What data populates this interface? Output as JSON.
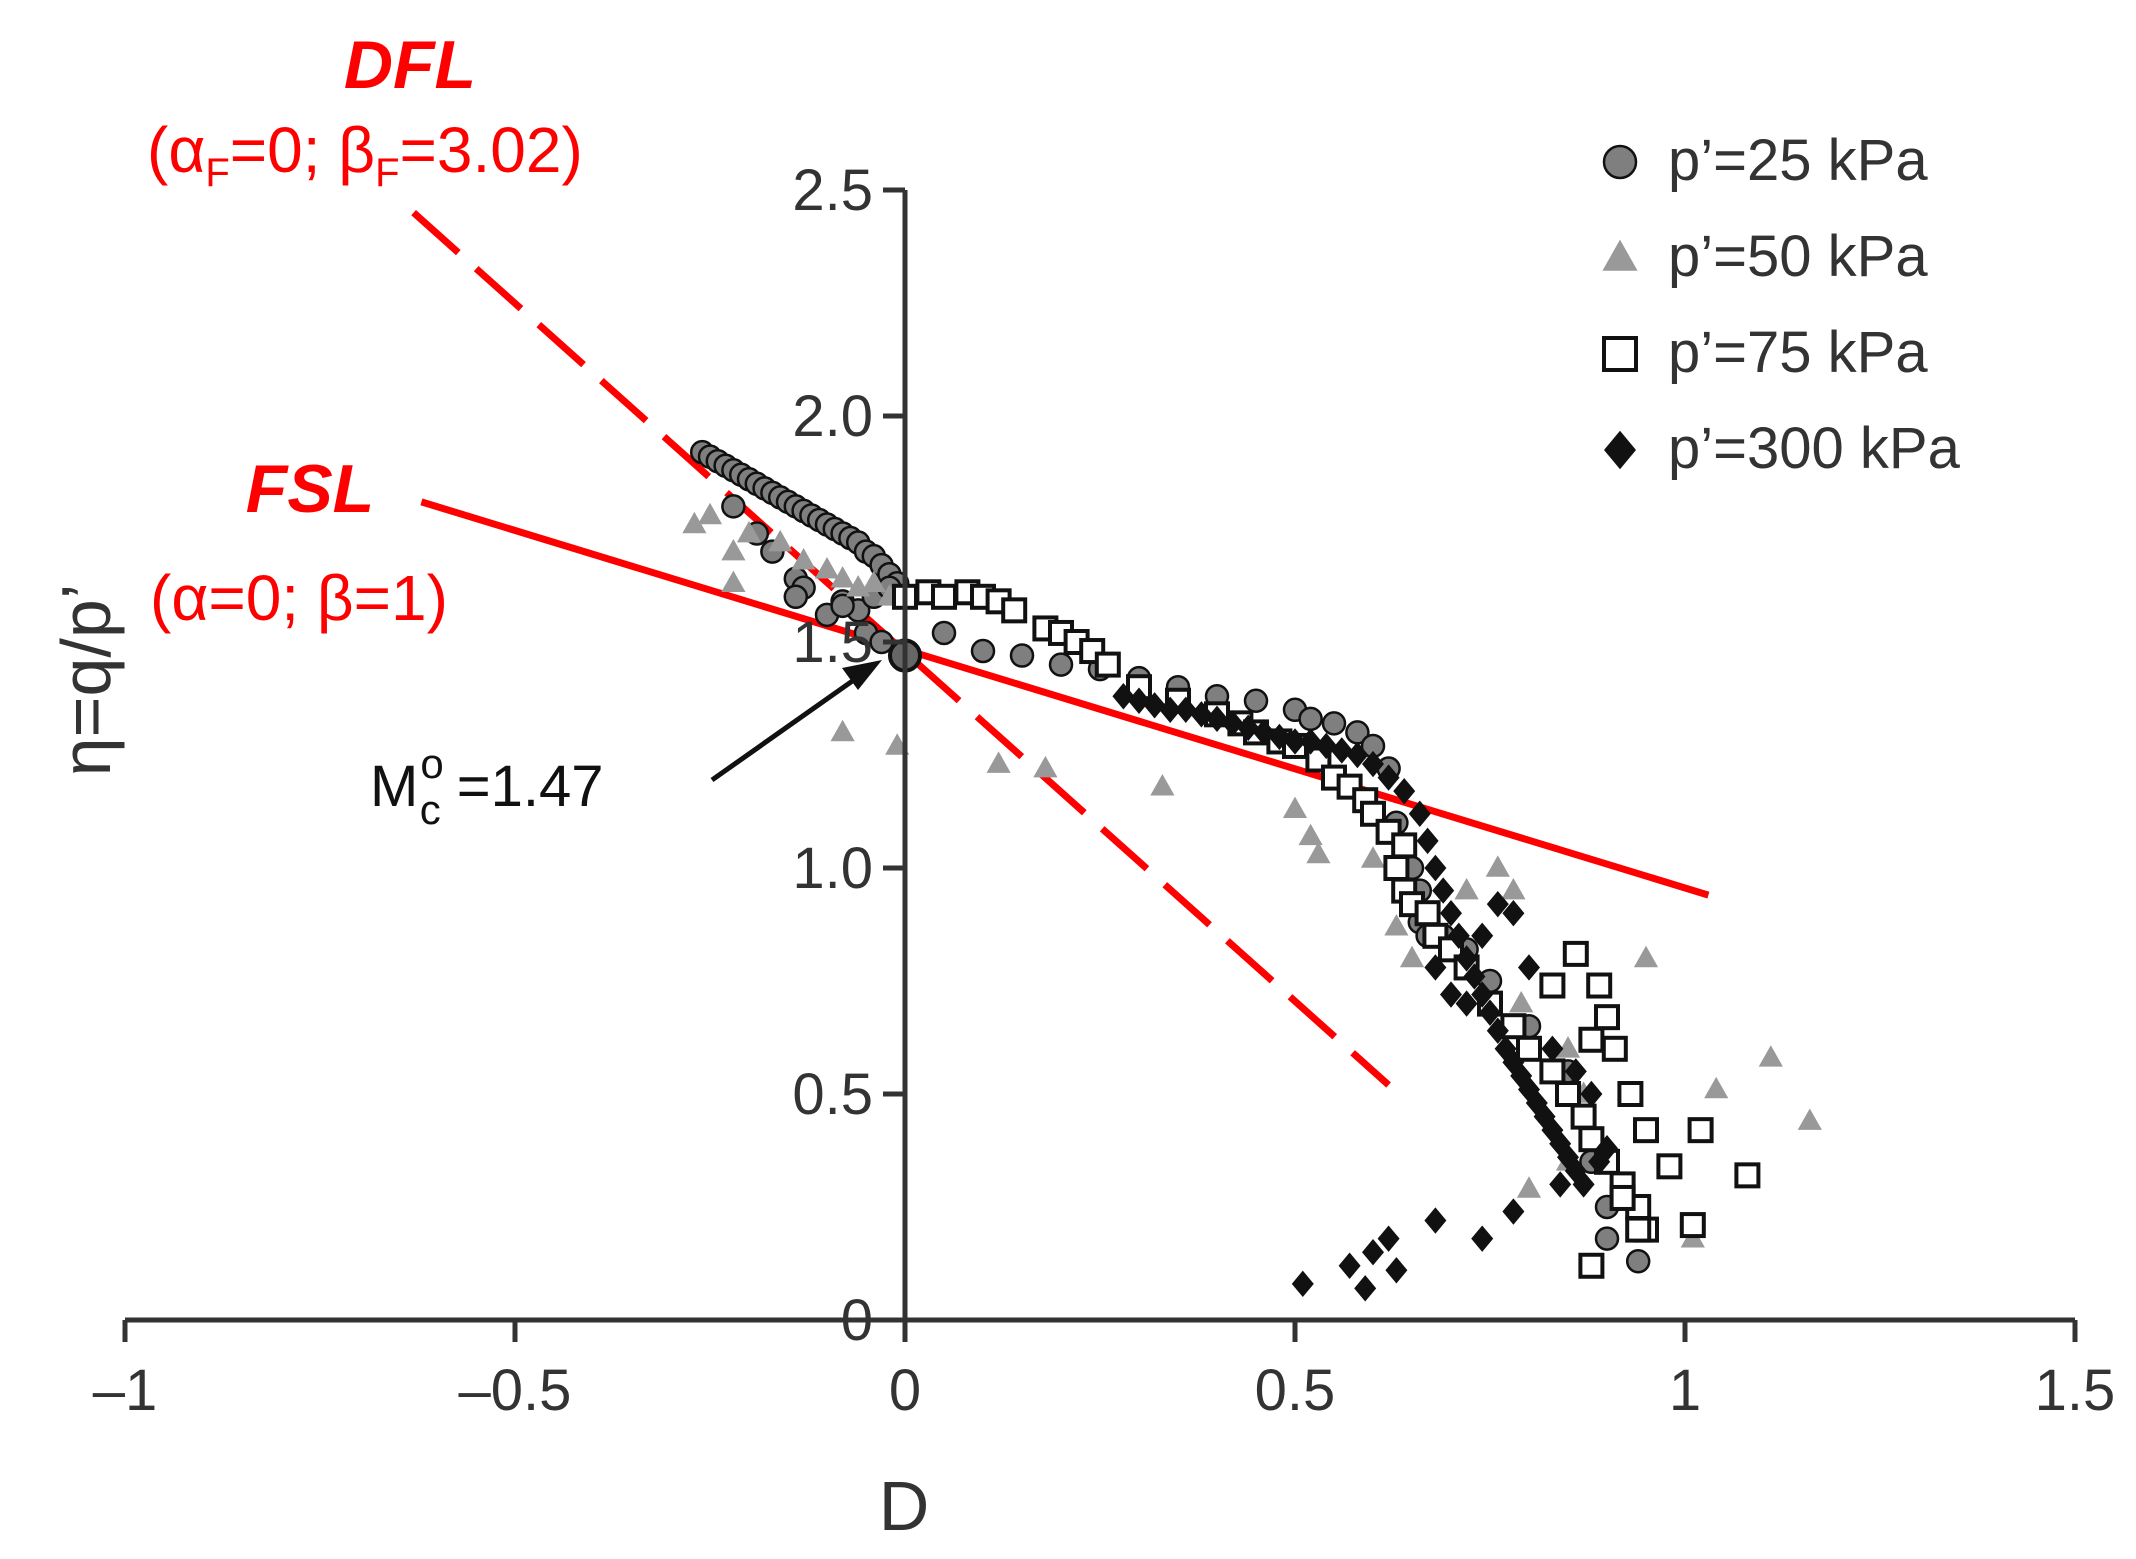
{
  "colors": {
    "axis": "#333333",
    "red": "#ff0000",
    "series_25": "#7f7f7f",
    "series_50": "#999999",
    "series_75": "#ffffff",
    "series_300": "#111111",
    "marker_stroke": "#111111"
  },
  "chart_data": {
    "type": "scatter",
    "title": "",
    "xlabel": "D",
    "ylabel": "η=q/p’",
    "xlim": [
      -1,
      1.5
    ],
    "ylim": [
      0,
      2.5
    ],
    "x_ticks": [
      {
        "value": -1,
        "label": "–1"
      },
      {
        "value": -0.5,
        "label": "–0.5"
      },
      {
        "value": 0,
        "label": "0"
      },
      {
        "value": 0.5,
        "label": "0.5"
      },
      {
        "value": 1,
        "label": "1"
      },
      {
        "value": 1.5,
        "label": "1.5"
      }
    ],
    "y_ticks": [
      {
        "value": 0,
        "label": "0"
      },
      {
        "value": 0.5,
        "label": "0.5"
      },
      {
        "value": 1.0,
        "label": "1.0"
      },
      {
        "value": 1.5,
        "label": "1.5"
      },
      {
        "value": 2.0,
        "label": "2.0"
      },
      {
        "value": 2.5,
        "label": "2.5"
      }
    ],
    "legend_position": "top-right",
    "series": [
      {
        "name": "p’=25 kPa",
        "marker": "circle",
        "color_key": "series_25",
        "points": [
          [
            -0.26,
            1.92
          ],
          [
            -0.25,
            1.91
          ],
          [
            -0.24,
            1.9
          ],
          [
            -0.23,
            1.89
          ],
          [
            -0.22,
            1.88
          ],
          [
            -0.21,
            1.87
          ],
          [
            -0.2,
            1.86
          ],
          [
            -0.19,
            1.85
          ],
          [
            -0.18,
            1.84
          ],
          [
            -0.17,
            1.83
          ],
          [
            -0.16,
            1.82
          ],
          [
            -0.15,
            1.81
          ],
          [
            -0.14,
            1.8
          ],
          [
            -0.13,
            1.79
          ],
          [
            -0.12,
            1.78
          ],
          [
            -0.11,
            1.77
          ],
          [
            -0.1,
            1.76
          ],
          [
            -0.09,
            1.75
          ],
          [
            -0.08,
            1.74
          ],
          [
            -0.07,
            1.73
          ],
          [
            -0.06,
            1.72
          ],
          [
            -0.05,
            1.7
          ],
          [
            -0.04,
            1.69
          ],
          [
            -0.03,
            1.67
          ],
          [
            -0.02,
            1.65
          ],
          [
            -0.01,
            1.63
          ],
          [
            -0.22,
            1.8
          ],
          [
            -0.19,
            1.74
          ],
          [
            -0.17,
            1.7
          ],
          [
            -0.14,
            1.64
          ],
          [
            -0.13,
            1.62
          ],
          [
            -0.08,
            1.59
          ],
          [
            -0.06,
            1.57
          ],
          [
            -0.04,
            1.6
          ],
          [
            -0.02,
            1.62
          ],
          [
            -0.14,
            1.6
          ],
          [
            -0.1,
            1.56
          ],
          [
            -0.08,
            1.58
          ],
          [
            -0.05,
            1.52
          ],
          [
            -0.03,
            1.5
          ],
          [
            0.05,
            1.52
          ],
          [
            0.1,
            1.48
          ],
          [
            0.15,
            1.47
          ],
          [
            0.2,
            1.45
          ],
          [
            0.25,
            1.44
          ],
          [
            0.3,
            1.42
          ],
          [
            0.35,
            1.4
          ],
          [
            0.4,
            1.38
          ],
          [
            0.45,
            1.37
          ],
          [
            0.5,
            1.35
          ],
          [
            0.52,
            1.33
          ],
          [
            0.55,
            1.32
          ],
          [
            0.58,
            1.3
          ],
          [
            0.6,
            1.27
          ],
          [
            0.62,
            1.22
          ],
          [
            0.63,
            1.1
          ],
          [
            0.64,
            1.05
          ],
          [
            0.65,
            1.0
          ],
          [
            0.66,
            0.95
          ],
          [
            0.66,
            0.88
          ],
          [
            0.67,
            0.85
          ],
          [
            0.69,
            0.85
          ],
          [
            0.72,
            0.82
          ],
          [
            0.75,
            0.75
          ],
          [
            0.8,
            0.65
          ],
          [
            0.85,
            0.55
          ],
          [
            0.87,
            0.45
          ],
          [
            0.88,
            0.35
          ],
          [
            0.9,
            0.25
          ],
          [
            0.9,
            0.18
          ],
          [
            0.94,
            0.13
          ]
        ]
      },
      {
        "name": "p’=50 kPa",
        "marker": "triangle",
        "color_key": "series_50",
        "points": [
          [
            -0.27,
            1.76
          ],
          [
            -0.25,
            1.78
          ],
          [
            -0.22,
            1.7
          ],
          [
            -0.2,
            1.74
          ],
          [
            -0.16,
            1.72
          ],
          [
            -0.13,
            1.68
          ],
          [
            -0.1,
            1.66
          ],
          [
            -0.08,
            1.64
          ],
          [
            -0.06,
            1.62
          ],
          [
            -0.04,
            1.63
          ],
          [
            -0.02,
            1.6
          ],
          [
            -0.22,
            1.63
          ],
          [
            -0.08,
            1.3
          ],
          [
            -0.01,
            1.27
          ],
          [
            0.12,
            1.23
          ],
          [
            0.18,
            1.22
          ],
          [
            0.33,
            1.18
          ],
          [
            0.5,
            1.13
          ],
          [
            0.52,
            1.07
          ],
          [
            0.53,
            1.03
          ],
          [
            0.6,
            1.02
          ],
          [
            0.63,
            0.87
          ],
          [
            0.65,
            0.8
          ],
          [
            0.72,
            0.95
          ],
          [
            0.76,
            1.0
          ],
          [
            0.78,
            0.95
          ],
          [
            0.79,
            0.7
          ],
          [
            0.85,
            0.6
          ],
          [
            0.87,
            0.5
          ],
          [
            0.8,
            0.29
          ],
          [
            0.85,
            0.35
          ],
          [
            0.9,
            0.38
          ],
          [
            0.95,
            0.8
          ],
          [
            1.01,
            0.18
          ],
          [
            1.04,
            0.51
          ],
          [
            1.11,
            0.58
          ],
          [
            1.16,
            0.44
          ]
        ]
      },
      {
        "name": "p’=75 kPa",
        "marker": "square",
        "color_key": "series_75",
        "points": [
          [
            0,
            1.6
          ],
          [
            0.03,
            1.61
          ],
          [
            0.05,
            1.6
          ],
          [
            0.08,
            1.61
          ],
          [
            0.1,
            1.6
          ],
          [
            0.12,
            1.59
          ],
          [
            0.14,
            1.57
          ],
          [
            0.18,
            1.53
          ],
          [
            0.2,
            1.52
          ],
          [
            0.22,
            1.5
          ],
          [
            0.24,
            1.48
          ],
          [
            0.26,
            1.45
          ],
          [
            0.3,
            1.4
          ],
          [
            0.35,
            1.37
          ],
          [
            0.4,
            1.34
          ],
          [
            0.43,
            1.32
          ],
          [
            0.45,
            1.3
          ],
          [
            0.48,
            1.28
          ],
          [
            0.5,
            1.27
          ],
          [
            0.53,
            1.24
          ],
          [
            0.55,
            1.2
          ],
          [
            0.57,
            1.18
          ],
          [
            0.59,
            1.15
          ],
          [
            0.6,
            1.12
          ],
          [
            0.62,
            1.08
          ],
          [
            0.64,
            1.05
          ],
          [
            0.63,
            1.0
          ],
          [
            0.64,
            0.95
          ],
          [
            0.65,
            0.92
          ],
          [
            0.67,
            0.9
          ],
          [
            0.68,
            0.85
          ],
          [
            0.7,
            0.82
          ],
          [
            0.72,
            0.78
          ],
          [
            0.75,
            0.7
          ],
          [
            0.78,
            0.65
          ],
          [
            0.8,
            0.6
          ],
          [
            0.83,
            0.55
          ],
          [
            0.85,
            0.5
          ],
          [
            0.87,
            0.45
          ],
          [
            0.88,
            0.4
          ],
          [
            0.9,
            0.35
          ],
          [
            0.92,
            0.3
          ],
          [
            0.94,
            0.25
          ],
          [
            0.95,
            0.2
          ],
          [
            0.86,
            0.81
          ],
          [
            0.83,
            0.74
          ],
          [
            0.89,
            0.74
          ],
          [
            0.9,
            0.67
          ],
          [
            0.88,
            0.62
          ],
          [
            0.91,
            0.6
          ],
          [
            0.93,
            0.5
          ],
          [
            0.95,
            0.42
          ],
          [
            0.92,
            0.27
          ],
          [
            0.98,
            0.34
          ],
          [
            1.01,
            0.21
          ],
          [
            1.02,
            0.42
          ],
          [
            1.08,
            0.32
          ],
          [
            0.88,
            0.12
          ],
          [
            0.94,
            0.2
          ]
        ]
      },
      {
        "name": "p’=300 kPa",
        "marker": "diamond",
        "color_key": "series_300",
        "points": [
          [
            0.28,
            1.38
          ],
          [
            0.3,
            1.37
          ],
          [
            0.32,
            1.36
          ],
          [
            0.34,
            1.35
          ],
          [
            0.36,
            1.35
          ],
          [
            0.38,
            1.34
          ],
          [
            0.4,
            1.33
          ],
          [
            0.42,
            1.32
          ],
          [
            0.44,
            1.31
          ],
          [
            0.46,
            1.3
          ],
          [
            0.48,
            1.29
          ],
          [
            0.5,
            1.28
          ],
          [
            0.52,
            1.28
          ],
          [
            0.54,
            1.27
          ],
          [
            0.56,
            1.26
          ],
          [
            0.58,
            1.25
          ],
          [
            0.6,
            1.23
          ],
          [
            0.62,
            1.2
          ],
          [
            0.64,
            1.17
          ],
          [
            0.66,
            1.12
          ],
          [
            0.67,
            1.06
          ],
          [
            0.68,
            1.0
          ],
          [
            0.69,
            0.95
          ],
          [
            0.7,
            0.9
          ],
          [
            0.71,
            0.85
          ],
          [
            0.72,
            0.8
          ],
          [
            0.73,
            0.76
          ],
          [
            0.74,
            0.72
          ],
          [
            0.75,
            0.68
          ],
          [
            0.76,
            0.64
          ],
          [
            0.77,
            0.6
          ],
          [
            0.78,
            0.57
          ],
          [
            0.79,
            0.54
          ],
          [
            0.8,
            0.51
          ],
          [
            0.81,
            0.48
          ],
          [
            0.82,
            0.45
          ],
          [
            0.83,
            0.42
          ],
          [
            0.84,
            0.39
          ],
          [
            0.85,
            0.36
          ],
          [
            0.86,
            0.33
          ],
          [
            0.87,
            0.3
          ],
          [
            0.76,
            0.92
          ],
          [
            0.78,
            0.9
          ],
          [
            0.74,
            0.85
          ],
          [
            0.68,
            0.78
          ],
          [
            0.7,
            0.72
          ],
          [
            0.72,
            0.7
          ],
          [
            0.8,
            0.78
          ],
          [
            0.83,
            0.6
          ],
          [
            0.86,
            0.55
          ],
          [
            0.88,
            0.5
          ],
          [
            0.84,
            0.3
          ],
          [
            0.89,
            0.35
          ],
          [
            0.9,
            0.38
          ],
          [
            0.51,
            0.08
          ],
          [
            0.57,
            0.12
          ],
          [
            0.59,
            0.07
          ],
          [
            0.6,
            0.15
          ],
          [
            0.62,
            0.18
          ],
          [
            0.63,
            0.11
          ],
          [
            0.68,
            0.22
          ],
          [
            0.74,
            0.18
          ],
          [
            0.78,
            0.24
          ]
        ]
      }
    ],
    "reference_lines": [
      {
        "name": "DFL",
        "label_title": "DFL",
        "style": "dashed",
        "x": [
          -0.63,
          0.62
        ],
        "y": [
          2.45,
          0.52
        ]
      },
      {
        "name": "FSL",
        "label_title": "FSL",
        "style": "solid",
        "x": [
          -0.62,
          1.03
        ],
        "y": [
          1.81,
          0.94
        ]
      }
    ],
    "annotations": {
      "dfl_title": "DFL",
      "dfl_alpha_sym": "α",
      "dfl_alpha_sub": "F",
      "dfl_mid": "=0; ",
      "dfl_beta_sym": "β",
      "dfl_beta_sub": "F",
      "dfl_end": "=3.02)",
      "dfl_open": "(",
      "fsl_title": "FSL",
      "fsl_params": "(α=0; β=1)",
      "mc_base": "M",
      "mc_sup": "o",
      "mc_sub": "c",
      "mc_value": " =1.47",
      "mc_point": {
        "x": 0,
        "y": 1.47
      }
    }
  }
}
